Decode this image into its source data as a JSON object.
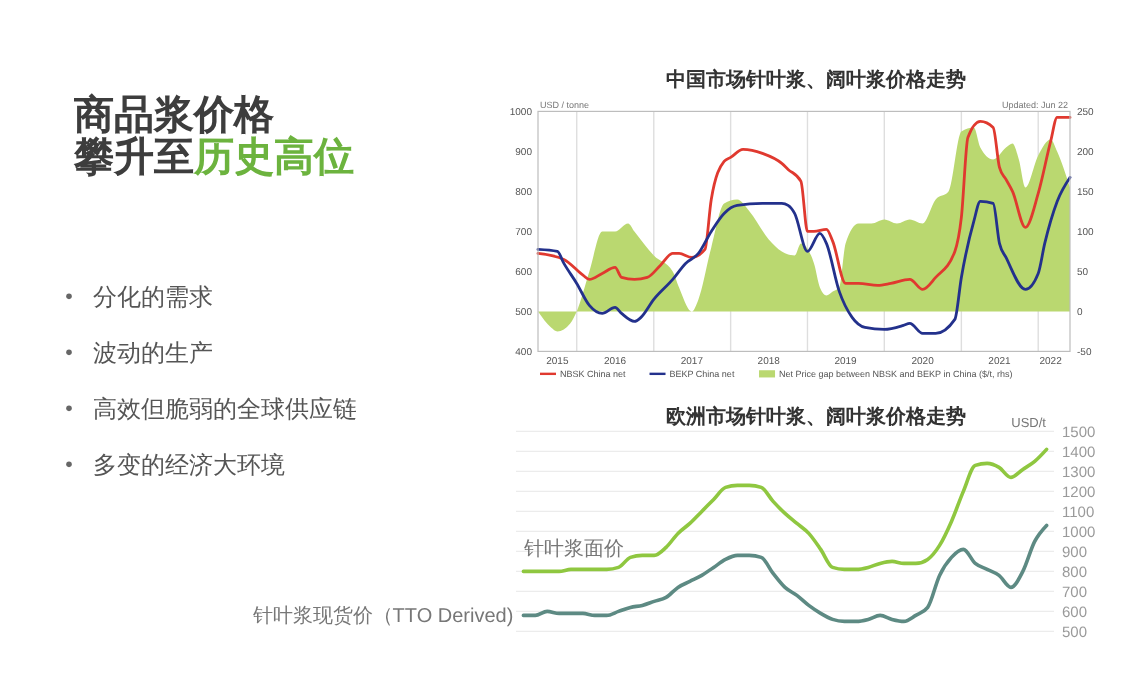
{
  "chart_data": [
    {
      "type": "other",
      "title": "商品浆价格",
      "subtitle": "攀升至历史高位",
      "annotations": [
        "分化的需求",
        "波动的生产",
        "高效但脆弱的全球供应链",
        "多变的经济大环境"
      ]
    },
    {
      "type": "line",
      "title": "中国市场针叶浆、阔叶浆价格走势",
      "ylabel": "USD / tonne",
      "annotations": [
        "Updated: Jun 22"
      ],
      "xlim": [
        "2015-07",
        "2022-06"
      ],
      "xticks": [
        {
          "value": "2015-10",
          "label": "2015"
        },
        {
          "value": "2016-01",
          "label": null
        },
        {
          "value": "2016-07",
          "label": "2016"
        },
        {
          "value": "2017-01",
          "label": null
        },
        {
          "value": "2017-07",
          "label": "2017"
        },
        {
          "value": "2018-01",
          "label": null
        },
        {
          "value": "2018-07",
          "label": "2018"
        },
        {
          "value": "2019-01",
          "label": null
        },
        {
          "value": "2019-07",
          "label": "2019"
        },
        {
          "value": "2020-01",
          "label": null
        },
        {
          "value": "2020-07",
          "label": "2020"
        },
        {
          "value": "2021-01",
          "label": null
        },
        {
          "value": "2021-07",
          "label": "2021"
        },
        {
          "value": "2022-01",
          "label": null
        },
        {
          "value": "2022-03",
          "label": "2022"
        }
      ],
      "ylim": [
        400,
        1000
      ],
      "yticks": [
        400,
        500,
        600,
        700,
        800,
        900,
        1000
      ],
      "y2lim": [
        -50,
        250
      ],
      "y2ticks": [
        -50,
        0,
        50,
        100,
        150,
        200,
        250
      ],
      "grid": "x",
      "legend": "bottom",
      "series": [
        {
          "name": "NBSK China net",
          "color": "#e0392f",
          "x": [
            "2015-07",
            "2015-11",
            "2016-02",
            "2016-03",
            "2016-05",
            "2016-07",
            "2016-08",
            "2016-10",
            "2016-12",
            "2017-02",
            "2017-04",
            "2017-05",
            "2017-07",
            "2017-09",
            "2017-10",
            "2017-12",
            "2018-01",
            "2018-03",
            "2018-06",
            "2018-09",
            "2018-10",
            "2018-12",
            "2019-01",
            "2019-02",
            "2019-04",
            "2019-05",
            "2019-07",
            "2019-09",
            "2019-12",
            "2020-02",
            "2020-05",
            "2020-07",
            "2020-09",
            "2020-12",
            "2021-01",
            "2021-02",
            "2021-04",
            "2021-06",
            "2021-07",
            "2021-08",
            "2021-09",
            "2021-11",
            "2022-01",
            "2022-03",
            "2022-04",
            "2022-06"
          ],
          "values": [
            645,
            630,
            590,
            580,
            595,
            610,
            585,
            580,
            585,
            615,
            645,
            645,
            635,
            655,
            780,
            875,
            885,
            905,
            895,
            870,
            855,
            825,
            700,
            700,
            705,
            675,
            570,
            570,
            565,
            570,
            580,
            555,
            585,
            650,
            735,
            935,
            975,
            960,
            860,
            830,
            800,
            710,
            795,
            925,
            985,
            985
          ]
        },
        {
          "name": "BEKP China net",
          "color": "#23318c",
          "x": [
            "2015-07",
            "2015-10",
            "2015-11",
            "2016-01",
            "2016-03",
            "2016-05",
            "2016-07",
            "2016-08",
            "2016-10",
            "2016-11",
            "2017-01",
            "2017-04",
            "2017-06",
            "2017-08",
            "2017-10",
            "2017-12",
            "2018-02",
            "2018-06",
            "2018-09",
            "2018-10",
            "2018-11",
            "2019-01",
            "2019-03",
            "2019-04",
            "2019-06",
            "2019-08",
            "2019-10",
            "2020-01",
            "2020-04",
            "2020-05",
            "2020-07",
            "2020-09",
            "2020-12",
            "2021-01",
            "2021-03",
            "2021-04",
            "2021-06",
            "2021-07",
            "2021-08",
            "2021-11",
            "2022-01",
            "2022-02",
            "2022-04",
            "2022-06"
          ],
          "values": [
            655,
            650,
            620,
            570,
            515,
            495,
            510,
            495,
            475,
            485,
            530,
            580,
            620,
            645,
            700,
            745,
            765,
            770,
            770,
            765,
            745,
            650,
            695,
            670,
            550,
            485,
            460,
            455,
            465,
            470,
            445,
            445,
            480,
            585,
            725,
            775,
            770,
            670,
            635,
            555,
            595,
            670,
            775,
            835
          ]
        },
        {
          "name": "Net Price gap between NBSK and BEKP in China ($/t, rhs)",
          "type": "area",
          "axis": "y2",
          "color": "#bad870",
          "x": [
            "2015-07",
            "2015-09",
            "2015-10",
            "2015-12",
            "2016-01",
            "2016-03",
            "2016-05",
            "2016-07",
            "2016-09",
            "2016-10",
            "2017-01",
            "2017-04",
            "2017-05",
            "2017-07",
            "2017-08",
            "2017-10",
            "2017-12",
            "2018-02",
            "2018-04",
            "2018-07",
            "2018-09",
            "2018-11",
            "2018-12",
            "2019-02",
            "2019-03",
            "2019-04",
            "2019-05",
            "2019-06",
            "2019-07",
            "2019-09",
            "2019-11",
            "2020-01",
            "2020-03",
            "2020-05",
            "2020-07",
            "2020-09",
            "2020-11",
            "2021-01",
            "2021-03",
            "2021-04",
            "2021-06",
            "2021-08",
            "2021-09",
            "2021-10",
            "2021-11",
            "2022-01",
            "2022-03",
            "2022-04",
            "2022-06"
          ],
          "values": [
            0,
            -20,
            -25,
            -15,
            0,
            50,
            100,
            100,
            110,
            100,
            70,
            50,
            30,
            0,
            15,
            80,
            135,
            140,
            125,
            90,
            75,
            70,
            85,
            60,
            30,
            20,
            25,
            30,
            85,
            110,
            110,
            115,
            110,
            115,
            110,
            140,
            150,
            225,
            230,
            205,
            190,
            205,
            210,
            190,
            155,
            195,
            215,
            200,
            155
          ]
        }
      ]
    },
    {
      "type": "line",
      "title": "欧洲市场针叶浆、阔叶浆价格走势",
      "ylabel": "USD/t",
      "ylim": [
        500,
        1500
      ],
      "yticks": [
        500,
        600,
        700,
        800,
        900,
        1000,
        1100,
        1200,
        1300,
        1400,
        1500
      ],
      "grid": "y",
      "categories": [
        null,
        null,
        null,
        null,
        null,
        null,
        null,
        null,
        null,
        null,
        null,
        null,
        null,
        null,
        null,
        null,
        null,
        null,
        null,
        null,
        null,
        null,
        null,
        null,
        null,
        null,
        null,
        null,
        null,
        null,
        null,
        null,
        null,
        null,
        null,
        null,
        null,
        null,
        null,
        null,
        null,
        null,
        null,
        null,
        null
      ],
      "series": [
        {
          "name": "针叶浆面价",
          "color": "#8fc740",
          "values": [
            800,
            800,
            800,
            800,
            810,
            810,
            810,
            810,
            820,
            870,
            880,
            880,
            920,
            990,
            1040,
            1100,
            1160,
            1220,
            1230,
            1230,
            1220,
            1150,
            1090,
            1040,
            990,
            910,
            820,
            810,
            810,
            820,
            840,
            850,
            840,
            840,
            860,
            930,
            1050,
            1200,
            1330,
            1340,
            1320,
            1270,
            1310,
            1350,
            1410
          ]
        },
        {
          "name": "针叶浆现货价（TTO Derived)",
          "color": "#5d8a83",
          "values": [
            580,
            580,
            600,
            590,
            590,
            590,
            580,
            580,
            600,
            620,
            630,
            650,
            670,
            720,
            750,
            780,
            820,
            860,
            880,
            880,
            870,
            790,
            720,
            680,
            630,
            590,
            560,
            550,
            550,
            560,
            580,
            560,
            550,
            580,
            620,
            780,
            870,
            910,
            840,
            810,
            780,
            720,
            800,
            950,
            1030
          ]
        }
      ]
    }
  ]
}
